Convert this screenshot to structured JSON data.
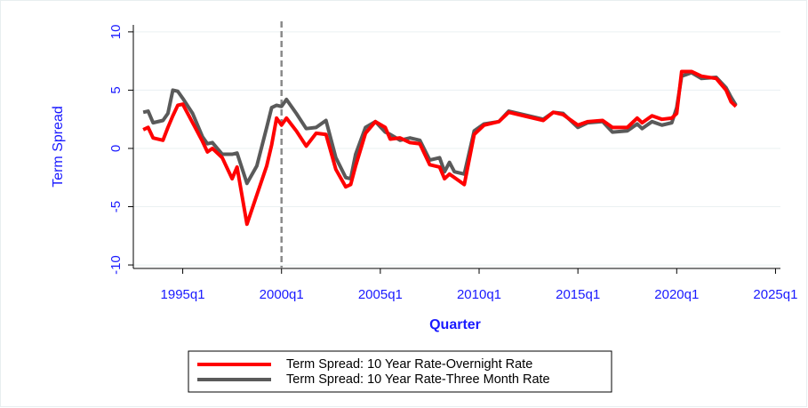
{
  "chart_data": {
    "type": "line",
    "y_label": "Term Spread",
    "x_label": "Quarter",
    "x": [
      "1993q1",
      "1993q2",
      "1993q3",
      "1994q1",
      "1994q2",
      "1994q3",
      "1994q4",
      "1995q1",
      "1995q3",
      "1996q1",
      "1996q2",
      "1996q3",
      "1997q1",
      "1997q3",
      "1997q4",
      "1998q2",
      "1998q4",
      "1999q2",
      "1999q3",
      "1999q4",
      "2000q1",
      "2000q2",
      "2000q4",
      "2001q2",
      "2001q4",
      "2002q2",
      "2002q4",
      "2003q2",
      "2003q3",
      "2003q4",
      "2004q2",
      "2004q4",
      "2005q2",
      "2005q3",
      "2006q1",
      "2006q3",
      "2007q1",
      "2007q3",
      "2008q1",
      "2008q2",
      "2008q3",
      "2008q4",
      "2009q2",
      "2009q4",
      "2010q2",
      "2011q1",
      "2011q3",
      "2012q2",
      "2013q2",
      "2013q4",
      "2014q2",
      "2015q1",
      "2015q3",
      "2016q2",
      "2016q4",
      "2017q3",
      "2018q1",
      "2018q2",
      "2018q4",
      "2019q2",
      "2019q4",
      "2020q1",
      "2020q2",
      "2020q4",
      "2021q2",
      "2022q1",
      "2022q3",
      "2022q4",
      "2023q1"
    ],
    "series": [
      {
        "name": "Term Spread: 10 Year Rate-Overnight Rate",
        "color": "#ff0000",
        "values": [
          1.6,
          1.8,
          0.9,
          0.7,
          1.8,
          2.8,
          3.7,
          3.8,
          2.2,
          0.6,
          -0.3,
          0,
          -0.8,
          -2.6,
          -1.6,
          -6.5,
          -4.0,
          -1.5,
          0.3,
          2.6,
          2.0,
          2.6,
          1.5,
          0.2,
          1.3,
          1.2,
          -1.8,
          -3.3,
          -3.1,
          -1.5,
          1.3,
          2.3,
          1.8,
          0.8,
          0.9,
          0.5,
          0.4,
          -1.4,
          -1.6,
          -2.6,
          -2.2,
          -2.5,
          -3.1,
          1.2,
          2.0,
          2.3,
          3.1,
          2.8,
          2.4,
          3.1,
          2.9,
          2.0,
          2.3,
          2.4,
          1.8,
          1.8,
          2.6,
          2.2,
          2.8,
          2.5,
          2.6,
          3.0,
          6.6,
          6.6,
          6.2,
          6.0,
          5.0,
          4.0,
          3.6
        ]
      },
      {
        "name": "Term Spread: 10 Year Rate-Three Month Rate",
        "color": "#5a5a5a",
        "values": [
          3.1,
          3.2,
          2.2,
          2.4,
          3.0,
          5.0,
          4.9,
          4.3,
          3.0,
          1.0,
          0.4,
          0.5,
          -0.5,
          -0.5,
          -0.4,
          -3.0,
          -1.5,
          1.8,
          3.5,
          3.7,
          3.6,
          4.2,
          3.0,
          1.7,
          1.8,
          2.4,
          -0.8,
          -2.5,
          -2.6,
          -0.5,
          1.8,
          2.3,
          1.4,
          1.2,
          0.7,
          0.9,
          0.7,
          -1.0,
          -0.8,
          -2.0,
          -1.2,
          -2.0,
          -2.2,
          1.5,
          2.1,
          2.3,
          3.2,
          2.9,
          2.5,
          3.1,
          3.0,
          1.8,
          2.2,
          2.3,
          1.4,
          1.5,
          2.1,
          1.7,
          2.3,
          2.0,
          2.2,
          3.5,
          6.2,
          6.5,
          6.0,
          6.1,
          5.2,
          4.4,
          3.7
        ]
      }
    ],
    "xlim": [
      "1992q3",
      "2025q2"
    ],
    "xticks": [
      "1995q1",
      "2000q1",
      "2005q1",
      "2010q1",
      "2015q1",
      "2020q1",
      "2025q1"
    ],
    "ylim": [
      -10.3,
      10.6
    ],
    "yticks": [
      -10,
      -5,
      0,
      5,
      10
    ],
    "grid": true,
    "vline": "2000q1",
    "legend": "bottom"
  }
}
